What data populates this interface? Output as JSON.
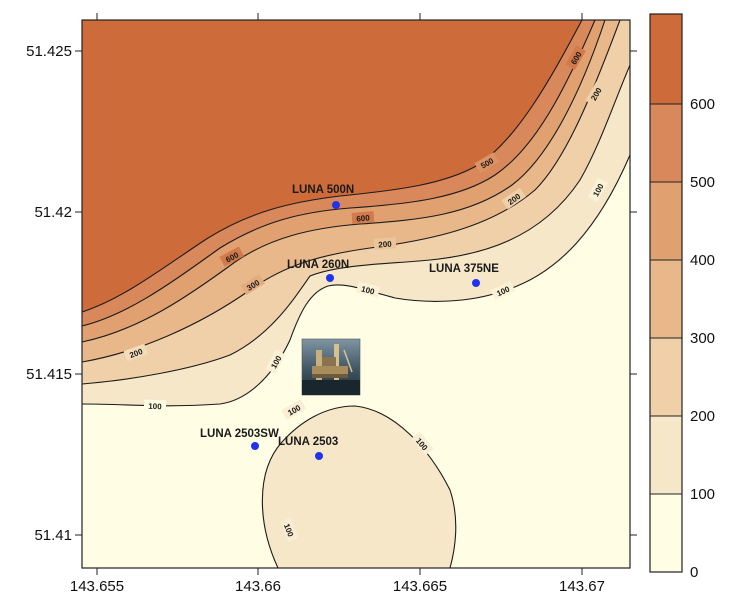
{
  "map": {
    "x_axis": {
      "ticks": [
        {
          "value": 143.655,
          "label": "143.655"
        },
        {
          "value": 143.66,
          "label": "143.66"
        },
        {
          "value": 143.665,
          "label": "143.665"
        },
        {
          "value": 143.67,
          "label": "143.67"
        }
      ]
    },
    "y_axis": {
      "ticks": [
        {
          "value": 51.425,
          "label": "51.425"
        },
        {
          "value": 51.42,
          "label": "51.42"
        },
        {
          "value": 51.415,
          "label": "51.415"
        },
        {
          "value": 51.41,
          "label": "51.41"
        }
      ]
    },
    "wells": [
      {
        "label": "LUNA 500N",
        "lon": 143.6618,
        "lat": 51.4203
      },
      {
        "label": "LUNA 260N",
        "lon": 143.6617,
        "lat": 51.4179
      },
      {
        "label": "LUNA 375NE",
        "lon": 143.6662,
        "lat": 51.4178
      },
      {
        "label": "LUNA 2503SW",
        "lon": 143.6595,
        "lat": 51.4129
      },
      {
        "label": "LUNA 2503",
        "lon": 143.6614,
        "lat": 51.4126
      }
    ],
    "platform_icon": "oil-platform-photo",
    "contour_labels": [
      "100",
      "200",
      "300",
      "400",
      "500",
      "600"
    ]
  },
  "colorbar": {
    "levels": [
      {
        "label": "0",
        "color": "#fffde3"
      },
      {
        "label": "100",
        "color": "#f6e7c8"
      },
      {
        "label": "200",
        "color": "#efd0a8"
      },
      {
        "label": "300",
        "color": "#e8b88a"
      },
      {
        "label": "400",
        "color": "#e0a070"
      },
      {
        "label": "500",
        "color": "#d8885a"
      },
      {
        "label": "600",
        "color": "#cd6b3a"
      }
    ],
    "top_color": "#cd6b3a"
  }
}
